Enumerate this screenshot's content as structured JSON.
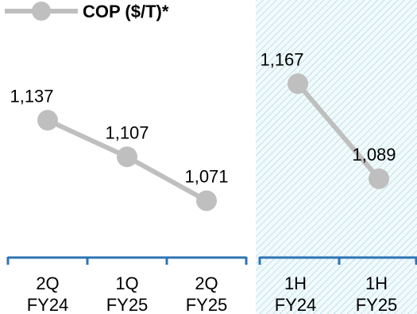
{
  "legend": {
    "label": "COP ($/T)*"
  },
  "colors": {
    "series": "#bfbfbf",
    "axis": "#2e74b5",
    "highlight_hatch": "#9fd3df",
    "highlight_bg": "#f2fafc"
  },
  "chart_data": {
    "type": "line",
    "categories": [
      [
        "2Q",
        "FY24"
      ],
      [
        "1Q",
        "FY25"
      ],
      [
        "2Q",
        "FY25"
      ],
      [
        "1H",
        "FY24"
      ],
      [
        "1H",
        "FY25"
      ]
    ],
    "groups": [
      {
        "category_indices": [
          0,
          1,
          2
        ],
        "values": [
          1137,
          1107,
          1071
        ],
        "highlighted": false
      },
      {
        "category_indices": [
          3,
          4
        ],
        "values": [
          1167,
          1089
        ],
        "highlighted": true
      }
    ],
    "value_labels": [
      "1,137",
      "1,107",
      "1,071",
      "1,167",
      "1,089"
    ],
    "series": [
      {
        "name": "COP ($/T)*"
      }
    ],
    "ylim": [
      1040,
      1190
    ],
    "grid": false,
    "legend_position": "top-left"
  }
}
